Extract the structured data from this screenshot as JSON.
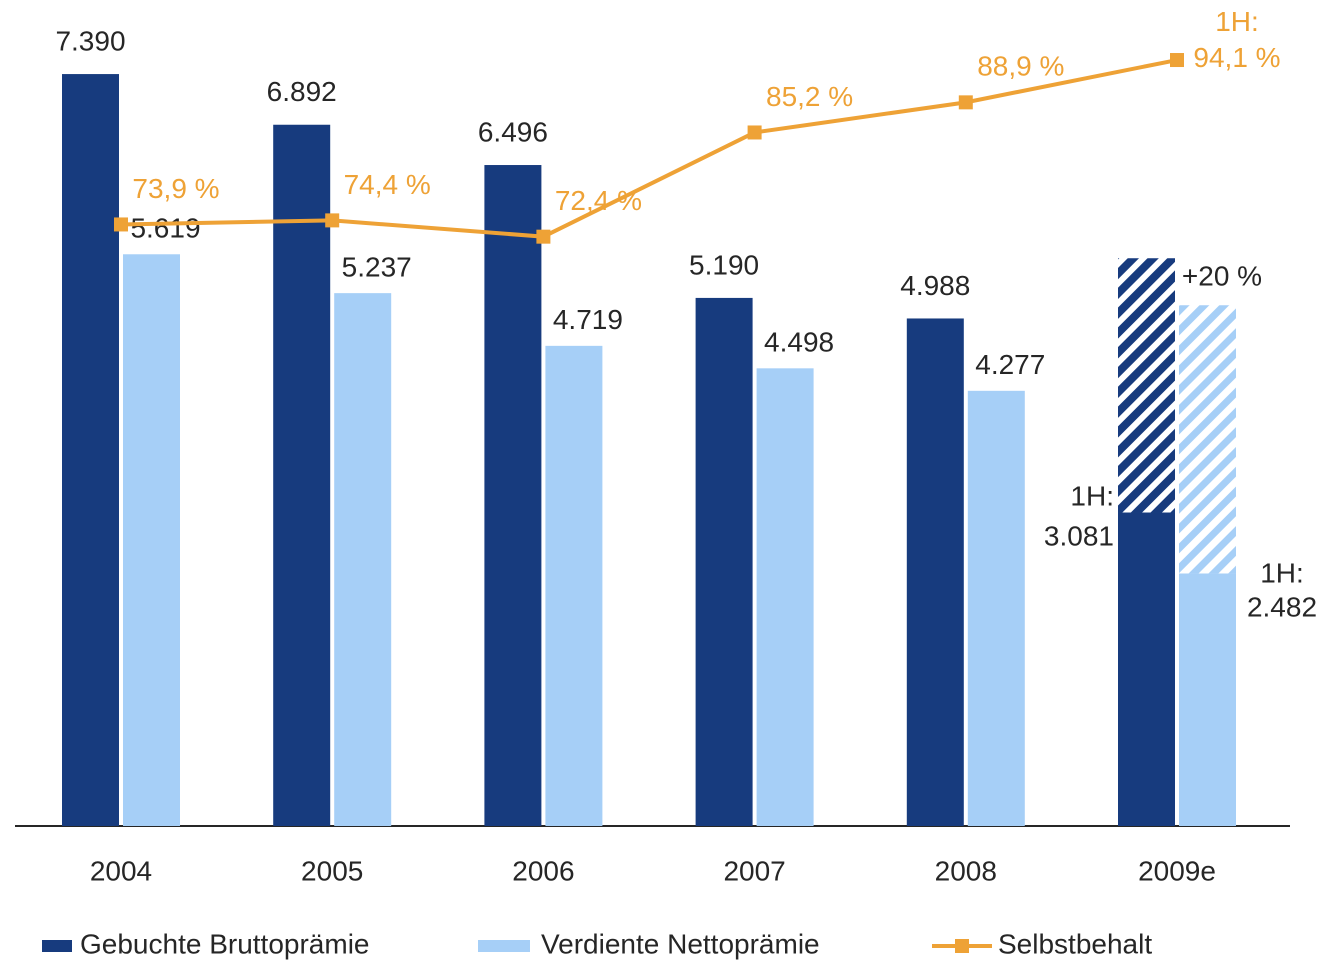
{
  "chart_data": {
    "type": "bar",
    "categories": [
      "2004",
      "2005",
      "2006",
      "2007",
      "2008",
      "2009e"
    ],
    "ylim": [
      0,
      8000
    ],
    "y2lim": [
      0,
      100
    ],
    "series": [
      {
        "name": "Gebuchte Bruttoprämie",
        "color": "#173b7e",
        "values": [
          7390,
          6892,
          6496,
          5190,
          4988,
          3081
        ],
        "value_labels": [
          "7.390",
          "6.892",
          "6.496",
          "5.190",
          "4.988",
          "1H:\n3.081"
        ],
        "estimate": [
          null,
          null,
          null,
          null,
          null,
          2499
        ]
      },
      {
        "name": "Verdiente Nettoprämie",
        "color": "#a6cff7",
        "values": [
          5619,
          5237,
          4719,
          4498,
          4277,
          2482
        ],
        "value_labels": [
          "5.619",
          "5.237",
          "4.719",
          "4.498",
          "4.277",
          "1H:\n2.482"
        ],
        "estimate": [
          null,
          null,
          null,
          null,
          null,
          2636
        ]
      },
      {
        "name": "Selbstbehalt",
        "type": "line",
        "axis": "y2",
        "color": "#eea236",
        "values": [
          73.9,
          74.4,
          72.4,
          85.2,
          88.9,
          94.1
        ],
        "value_labels": [
          "73,9 %",
          "74,4 %",
          "72,4 %",
          "85,2 %",
          "88,9 %",
          "1H:\n94,1 %"
        ]
      }
    ],
    "annotations": [
      "+20 %"
    ]
  }
}
